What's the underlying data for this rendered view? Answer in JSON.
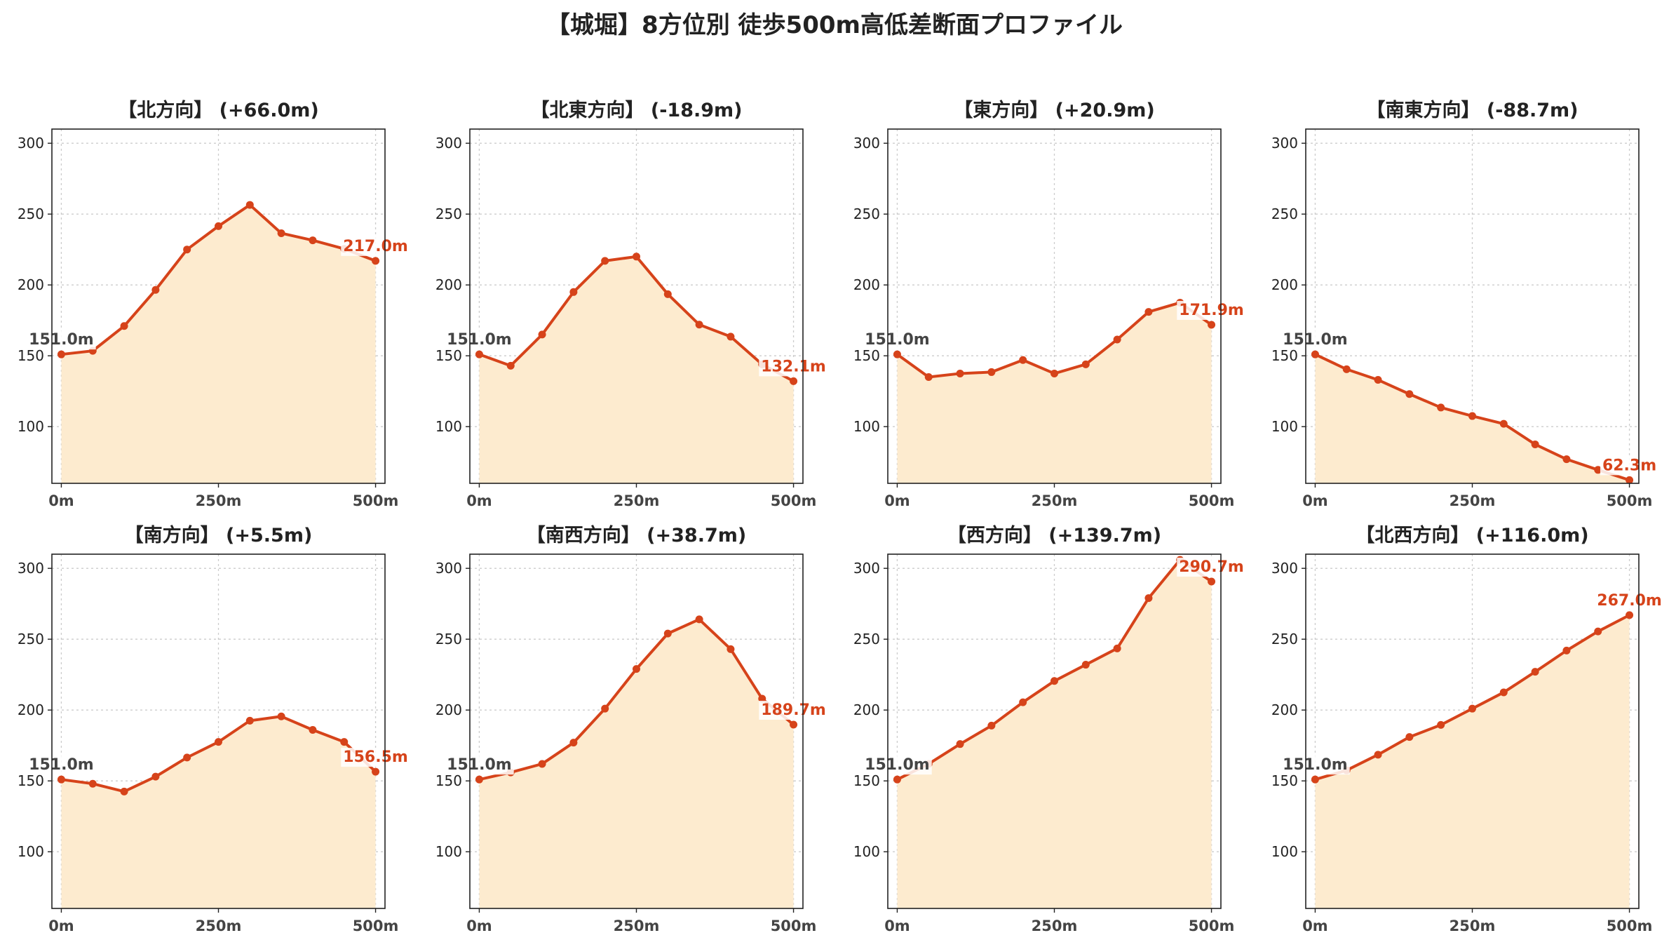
{
  "title": "【城堀】8方位別 徒歩500m高低差断面プロファイル",
  "colors": {
    "line": "#d6431a",
    "fill": "#fdebcf",
    "start_label": "#444444",
    "grid": "#cccccc",
    "axis": "#222222"
  },
  "chart_data": [
    {
      "type": "area",
      "title": "【北方向】 (+66.0m)",
      "x": [
        0,
        50,
        100,
        150,
        200,
        250,
        300,
        350,
        400,
        450,
        500
      ],
      "y": [
        151.0,
        153.5,
        171.0,
        196.5,
        225.0,
        241.5,
        256.5,
        236.5,
        231.5,
        225.5,
        217.0
      ],
      "start_label": "151.0m",
      "end_label": "217.0m",
      "xticks": [
        "0m",
        "250m",
        "500m"
      ],
      "yticks": [
        100,
        150,
        200,
        250,
        300
      ],
      "xlim": [
        -15,
        515
      ],
      "ylim": [
        60,
        310
      ],
      "grid": true
    },
    {
      "type": "area",
      "title": "【北東方向】 (-18.9m)",
      "x": [
        0,
        50,
        100,
        150,
        200,
        250,
        300,
        350,
        400,
        450,
        500
      ],
      "y": [
        151.0,
        143.0,
        165.0,
        195.0,
        217.0,
        220.0,
        193.5,
        172.0,
        163.5,
        144.0,
        132.1
      ],
      "start_label": "151.0m",
      "end_label": "132.1m",
      "xticks": [
        "0m",
        "250m",
        "500m"
      ],
      "yticks": [
        100,
        150,
        200,
        250,
        300
      ],
      "xlim": [
        -15,
        515
      ],
      "ylim": [
        60,
        310
      ],
      "grid": true
    },
    {
      "type": "area",
      "title": "【東方向】 (+20.9m)",
      "x": [
        0,
        50,
        100,
        150,
        200,
        250,
        300,
        350,
        400,
        450,
        500
      ],
      "y": [
        151.0,
        135.0,
        137.5,
        138.5,
        147.0,
        137.5,
        144.0,
        161.5,
        181.0,
        187.5,
        171.9
      ],
      "start_label": "151.0m",
      "end_label": "171.9m",
      "xticks": [
        "0m",
        "250m",
        "500m"
      ],
      "yticks": [
        100,
        150,
        200,
        250,
        300
      ],
      "xlim": [
        -15,
        515
      ],
      "ylim": [
        60,
        310
      ],
      "grid": true
    },
    {
      "type": "area",
      "title": "【南東方向】 (-88.7m)",
      "x": [
        0,
        50,
        100,
        150,
        200,
        250,
        300,
        350,
        400,
        450,
        500
      ],
      "y": [
        151.0,
        140.5,
        133.0,
        123.0,
        113.5,
        107.5,
        102.0,
        87.5,
        77.0,
        69.5,
        62.3
      ],
      "start_label": "151.0m",
      "end_label": "62.3m",
      "xticks": [
        "0m",
        "250m",
        "500m"
      ],
      "yticks": [
        100,
        150,
        200,
        250,
        300
      ],
      "xlim": [
        -15,
        515
      ],
      "ylim": [
        60,
        310
      ],
      "grid": true
    },
    {
      "type": "area",
      "title": "【南方向】 (+5.5m)",
      "x": [
        0,
        50,
        100,
        150,
        200,
        250,
        300,
        350,
        400,
        450,
        500
      ],
      "y": [
        151.0,
        148.0,
        142.5,
        153.0,
        166.5,
        177.5,
        192.5,
        195.5,
        186.0,
        177.5,
        156.5
      ],
      "start_label": "151.0m",
      "end_label": "156.5m",
      "xticks": [
        "0m",
        "250m",
        "500m"
      ],
      "yticks": [
        100,
        150,
        200,
        250,
        300
      ],
      "xlim": [
        -15,
        515
      ],
      "ylim": [
        60,
        310
      ],
      "grid": true
    },
    {
      "type": "area",
      "title": "【南西方向】 (+38.7m)",
      "x": [
        0,
        50,
        100,
        150,
        200,
        250,
        300,
        350,
        400,
        450,
        500
      ],
      "y": [
        151.0,
        156.0,
        162.0,
        177.0,
        201.0,
        229.0,
        254.0,
        264.0,
        243.0,
        208.0,
        189.7
      ],
      "start_label": "151.0m",
      "end_label": "189.7m",
      "xticks": [
        "0m",
        "250m",
        "500m"
      ],
      "yticks": [
        100,
        150,
        200,
        250,
        300
      ],
      "xlim": [
        -15,
        515
      ],
      "ylim": [
        60,
        310
      ],
      "grid": true
    },
    {
      "type": "area",
      "title": "【西方向】 (+139.7m)",
      "x": [
        0,
        50,
        100,
        150,
        200,
        250,
        300,
        350,
        400,
        450,
        500
      ],
      "y": [
        151.0,
        162.0,
        176.0,
        189.0,
        205.5,
        220.5,
        232.0,
        243.5,
        279.0,
        306.0,
        290.7
      ],
      "start_label": "151.0m",
      "end_label": "290.7m",
      "xticks": [
        "0m",
        "250m",
        "500m"
      ],
      "yticks": [
        100,
        150,
        200,
        250,
        300
      ],
      "xlim": [
        -15,
        515
      ],
      "ylim": [
        60,
        310
      ],
      "grid": true
    },
    {
      "type": "area",
      "title": "【北西方向】 (+116.0m)",
      "x": [
        0,
        50,
        100,
        150,
        200,
        250,
        300,
        350,
        400,
        450,
        500
      ],
      "y": [
        151.0,
        157.5,
        168.5,
        181.0,
        189.5,
        201.0,
        212.5,
        227.0,
        242.0,
        255.5,
        267.0
      ],
      "start_label": "151.0m",
      "end_label": "267.0m",
      "xticks": [
        "0m",
        "250m",
        "500m"
      ],
      "yticks": [
        100,
        150,
        200,
        250,
        300
      ],
      "xlim": [
        -15,
        515
      ],
      "ylim": [
        60,
        310
      ],
      "grid": true
    }
  ]
}
